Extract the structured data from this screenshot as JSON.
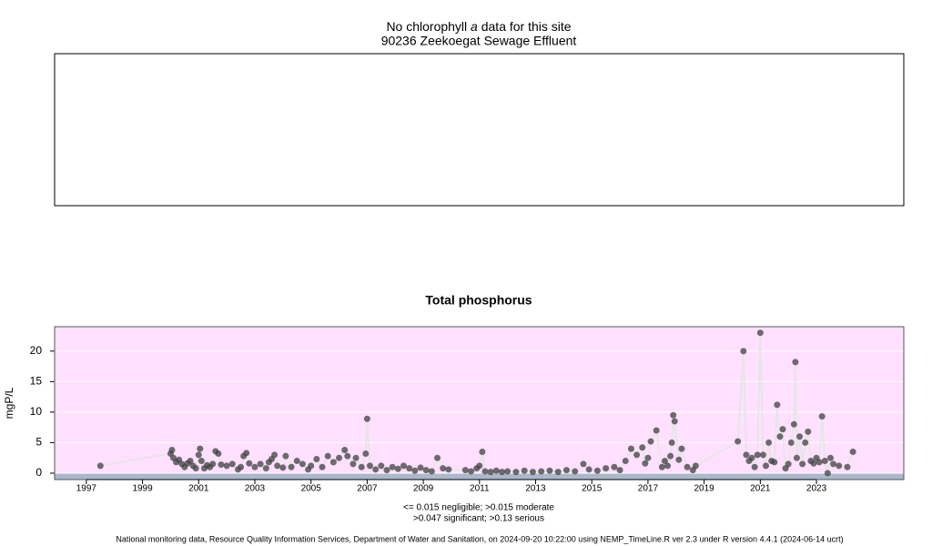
{
  "chart_data": [
    {
      "type": "empty",
      "title_parts": [
        "No chlorophyll ",
        "a",
        " data for this site"
      ],
      "subtitle": "90236 Zeekoegat Sewage Effluent"
    },
    {
      "type": "line",
      "markers": true,
      "title": "Total phosphorus",
      "ylabel": "mgP/L",
      "line_color": "#e6e6e6",
      "marker_color": "#404040",
      "background": "#ffe0ff",
      "floor_color": "#a9b8cb",
      "xlim": [
        1995.87,
        2026.11
      ],
      "ylim": [
        -1.05,
        24
      ],
      "xticks": [
        1997,
        1999,
        2001,
        2003,
        2005,
        2007,
        2009,
        2011,
        2013,
        2015,
        2017,
        2019,
        2021,
        2023
      ],
      "yticks": [
        0,
        5,
        10,
        15,
        20
      ],
      "grid": true,
      "x": [
        1997.5,
        2000.0,
        2000.05,
        2000.1,
        2000.2,
        2000.3,
        2000.4,
        2000.5,
        2000.6,
        2000.7,
        2000.8,
        2000.9,
        2001.0,
        2001.05,
        2001.1,
        2001.2,
        2001.3,
        2001.4,
        2001.5,
        2001.6,
        2001.7,
        2001.8,
        2002.0,
        2002.2,
        2002.4,
        2002.5,
        2002.6,
        2002.7,
        2002.8,
        2003.0,
        2003.2,
        2003.4,
        2003.5,
        2003.6,
        2003.7,
        2003.8,
        2004.0,
        2004.1,
        2004.3,
        2004.5,
        2004.7,
        2004.9,
        2005.0,
        2005.2,
        2005.4,
        2005.6,
        2005.8,
        2006.0,
        2006.2,
        2006.3,
        2006.5,
        2006.6,
        2006.8,
        2006.95,
        2007.0,
        2007.1,
        2007.3,
        2007.5,
        2007.7,
        2007.9,
        2008.1,
        2008.3,
        2008.5,
        2008.7,
        2008.9,
        2009.1,
        2009.3,
        2009.5,
        2009.7,
        2009.9,
        2010.5,
        2010.7,
        2010.9,
        2011.0,
        2011.1,
        2011.2,
        2011.4,
        2011.6,
        2011.8,
        2012.0,
        2012.3,
        2012.6,
        2012.9,
        2013.2,
        2013.5,
        2013.8,
        2014.1,
        2014.4,
        2014.7,
        2014.9,
        2015.2,
        2015.5,
        2015.8,
        2016.0,
        2016.2,
        2016.4,
        2016.6,
        2016.8,
        2016.9,
        2017.0,
        2017.1,
        2017.3,
        2017.5,
        2017.6,
        2017.7,
        2017.8,
        2017.85,
        2017.9,
        2017.95,
        2018.1,
        2018.2,
        2018.4,
        2018.6,
        2018.7,
        2020.2,
        2020.4,
        2020.5,
        2020.6,
        2020.7,
        2020.8,
        2020.9,
        2021.0,
        2021.1,
        2021.2,
        2021.3,
        2021.4,
        2021.5,
        2021.6,
        2021.7,
        2021.8,
        2021.9,
        2022.0,
        2022.1,
        2022.2,
        2022.25,
        2022.3,
        2022.4,
        2022.5,
        2022.6,
        2022.7,
        2022.8,
        2022.9,
        2023.0,
        2023.1,
        2023.2,
        2023.3,
        2023.4,
        2023.5,
        2023.6,
        2023.8,
        2024.1,
        2024.3
      ],
      "values": [
        1.2,
        3.2,
        3.8,
        2.5,
        1.8,
        2.2,
        1.5,
        1.0,
        1.6,
        2.0,
        1.2,
        0.8,
        3.0,
        4.0,
        2.0,
        0.8,
        1.3,
        1.0,
        1.5,
        3.6,
        3.2,
        1.4,
        1.2,
        1.5,
        0.6,
        1.0,
        2.8,
        3.3,
        1.6,
        1.0,
        1.5,
        0.8,
        1.8,
        2.3,
        3.0,
        1.2,
        0.9,
        2.8,
        1.0,
        2.0,
        1.5,
        0.6,
        1.2,
        2.3,
        1.0,
        2.8,
        1.8,
        2.5,
        3.8,
        2.8,
        1.5,
        2.5,
        1.0,
        3.2,
        8.9,
        1.2,
        0.6,
        1.2,
        0.5,
        1.0,
        0.7,
        1.2,
        0.8,
        0.4,
        0.9,
        0.5,
        0.3,
        2.5,
        0.8,
        0.6,
        0.5,
        0.3,
        0.8,
        1.2,
        3.5,
        0.3,
        0.2,
        0.4,
        0.2,
        0.3,
        0.2,
        0.4,
        0.2,
        0.3,
        0.4,
        0.2,
        0.5,
        0.3,
        1.5,
        0.6,
        0.4,
        0.8,
        1.0,
        0.5,
        2.0,
        4.0,
        3.0,
        4.2,
        1.6,
        2.5,
        5.2,
        7.0,
        1.0,
        2.0,
        1.2,
        2.8,
        5.0,
        9.5,
        8.5,
        2.2,
        4.0,
        1.0,
        0.5,
        1.2,
        5.2,
        20.0,
        3.0,
        2.0,
        2.5,
        1.0,
        3.0,
        23.0,
        3.0,
        1.2,
        5.0,
        2.0,
        1.8,
        11.2,
        6.0,
        7.2,
        0.8,
        1.5,
        5.0,
        8.0,
        18.2,
        2.5,
        6.0,
        1.5,
        5.0,
        6.8,
        2.0,
        1.6,
        2.5,
        1.8,
        9.3,
        2.0,
        0.0,
        2.5,
        1.5,
        1.2,
        1.0,
        3.5
      ]
    }
  ],
  "notes": [
    "<= 0.015 negligible; >0.015 moderate",
    ">0.047 significant; >0.13 serious"
  ],
  "footer": "National monitoring data, Resource Quality Information Services, Department of Water and Sanitation, on 2024-09-20 10:22:00 using NEMP_TimeLine.R ver 2.3 under R version 4.4.1 (2024-06-14 ucrt)"
}
